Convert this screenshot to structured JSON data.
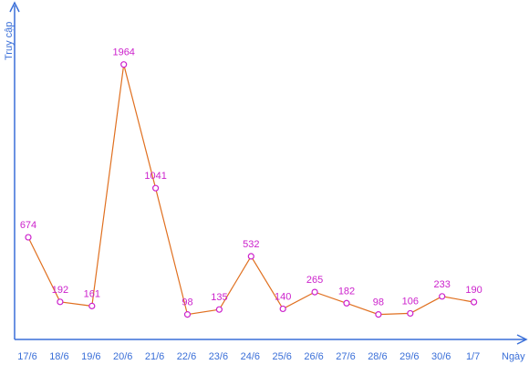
{
  "chart_data": {
    "type": "line",
    "categories": [
      "17/6",
      "18/6",
      "19/6",
      "20/6",
      "21/6",
      "22/6",
      "23/6",
      "24/6",
      "25/6",
      "26/6",
      "27/6",
      "28/6",
      "29/6",
      "30/6",
      "1/7"
    ],
    "series": [
      {
        "values": [
          674,
          192,
          161,
          1964,
          1041,
          98,
          135,
          532,
          140,
          265,
          182,
          98,
          106,
          233,
          190
        ]
      }
    ],
    "data_labels": [
      "674",
      "192",
      "161",
      "1964",
      "1041",
      "98",
      "135",
      "532",
      "140",
      "265",
      "182",
      "98",
      "106",
      "233",
      "190"
    ],
    "xlabel": "Ngày",
    "ylabel": "Truy cập",
    "grid": false,
    "legend": "none"
  },
  "colors": {
    "axis": "#3a6fd8",
    "line": "#e07020",
    "marker": "#cc22cc",
    "label": "#cc22cc"
  }
}
